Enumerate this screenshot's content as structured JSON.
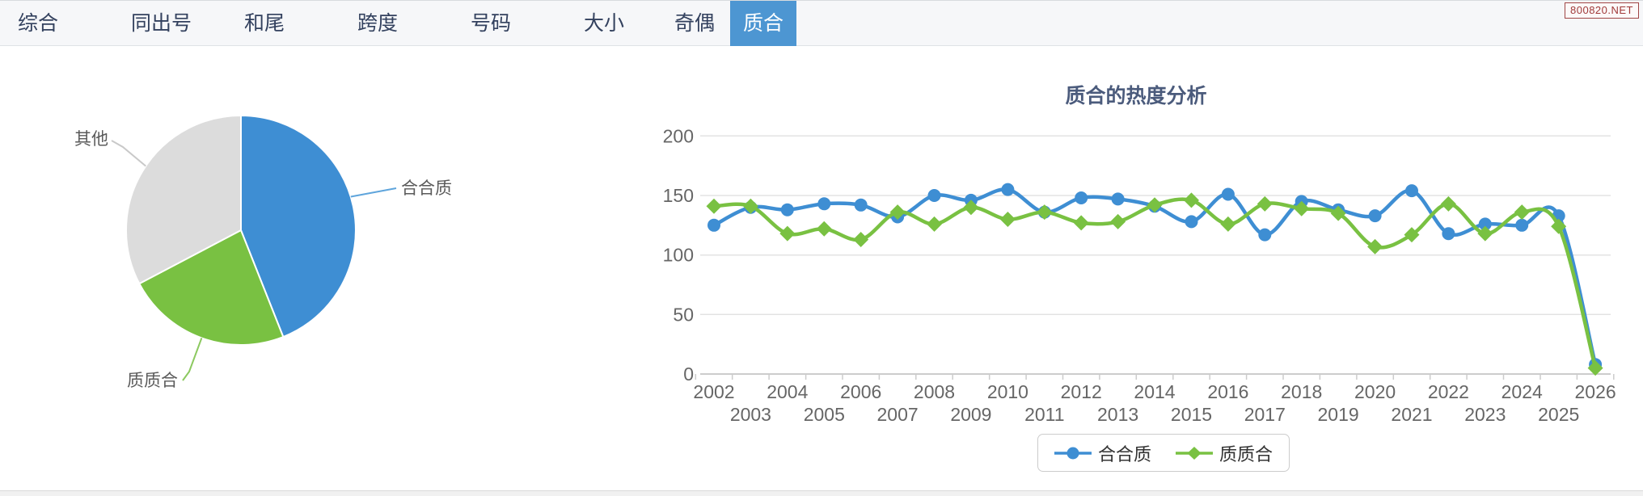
{
  "tabs": {
    "items": [
      {
        "label": "综合",
        "active": false
      },
      {
        "label": "同出号",
        "active": false
      },
      {
        "label": "和尾",
        "active": false
      },
      {
        "label": "跨度",
        "active": false
      },
      {
        "label": "号码",
        "active": false
      },
      {
        "label": "大小",
        "active": false
      },
      {
        "label": "奇偶",
        "active": false
      },
      {
        "label": "质合",
        "active": true
      }
    ],
    "active_bg": "#4d96d2"
  },
  "badge": {
    "text": "800820.NET"
  },
  "colors": {
    "series_blue": "#3e8ed3",
    "series_green": "#79c142",
    "pie_gray": "#dcdcdc",
    "grid_line": "#e3e3e3",
    "axis_line": "#cccccc",
    "axis_text": "#666666",
    "title_text": "#4b5b7c",
    "pie_label_text": "#5a5a5a"
  },
  "chart_data": [
    {
      "type": "pie",
      "title": "",
      "direction": "clockwise",
      "start_angle_deg": 0,
      "slices": [
        {
          "label": "合合质",
          "percent": 44.0,
          "color": "#3e8ed3",
          "leader_color": "#5fa5dc"
        },
        {
          "label": "质质合",
          "percent": 23.3,
          "color": "#79c142",
          "leader_color": "#8cc960"
        },
        {
          "label": "其他",
          "percent": 32.7,
          "color": "#dcdcdc",
          "leader_color": "#c9c9c9"
        }
      ]
    },
    {
      "type": "line",
      "title": "质合的热度分析",
      "grid": "horizontal",
      "legend_position": "bottom",
      "ylim": [
        0,
        200
      ],
      "y_ticks": [
        0,
        50,
        100,
        150,
        200
      ],
      "categories": [
        "2002",
        "2003",
        "2004",
        "2005",
        "2006",
        "2007",
        "2008",
        "2009",
        "2010",
        "2011",
        "2012",
        "2013",
        "2014",
        "2015",
        "2016",
        "2017",
        "2018",
        "2019",
        "2020",
        "2021",
        "2022",
        "2023",
        "2024",
        "2025",
        "2026"
      ],
      "series": [
        {
          "name": "合合质",
          "color": "#3e8ed3",
          "marker": "circle",
          "values": [
            125,
            140,
            138,
            143,
            142,
            132,
            150,
            146,
            155,
            136,
            148,
            147,
            141,
            128,
            151,
            117,
            145,
            138,
            133,
            154,
            118,
            126,
            125,
            133,
            8
          ]
        },
        {
          "name": "质质合",
          "color": "#79c142",
          "marker": "diamond",
          "values": [
            141,
            141,
            118,
            122,
            113,
            136,
            126,
            140,
            130,
            136,
            127,
            128,
            142,
            146,
            126,
            143,
            139,
            135,
            107,
            117,
            143,
            118,
            136,
            124,
            5
          ]
        }
      ]
    }
  ]
}
